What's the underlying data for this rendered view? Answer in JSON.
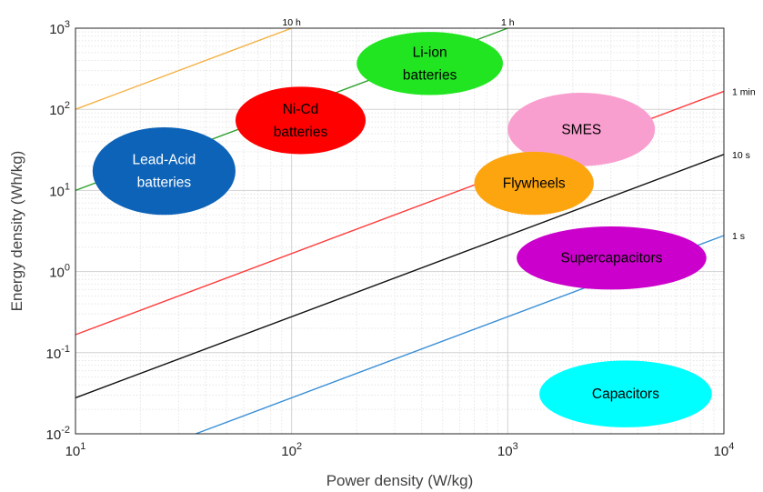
{
  "chart_data": {
    "type": "scatter",
    "title": "",
    "xlabel": "Power density (W/kg)",
    "ylabel": "Energy density (Wh/kg)",
    "xscale": "log",
    "yscale": "log",
    "xlim": [
      10,
      10000
    ],
    "ylim": [
      0.01,
      1000
    ],
    "grid": true,
    "x_ticks": [
      {
        "base": "10",
        "exp": "1",
        "value": 10
      },
      {
        "base": "10",
        "exp": "2",
        "value": 100
      },
      {
        "base": "10",
        "exp": "3",
        "value": 1000
      },
      {
        "base": "10",
        "exp": "4",
        "value": 10000
      }
    ],
    "y_ticks": [
      {
        "base": "10",
        "exp": "-2",
        "value": 0.01
      },
      {
        "base": "10",
        "exp": "-1",
        "value": 0.1
      },
      {
        "base": "10",
        "exp": "0",
        "value": 1
      },
      {
        "base": "10",
        "exp": "1",
        "value": 10
      },
      {
        "base": "10",
        "exp": "2",
        "value": 100
      },
      {
        "base": "10",
        "exp": "3",
        "value": 1000
      }
    ],
    "time_lines": [
      {
        "label": "10 h",
        "hours": 10,
        "color": "#f5b041"
      },
      {
        "label": "1 h",
        "hours": 1,
        "color": "#2ca02c"
      },
      {
        "label": "1 min",
        "hours": 0.016667,
        "color": "#ff3b3b"
      },
      {
        "label": "10 s",
        "hours": 0.0027778,
        "color": "#111111"
      },
      {
        "label": "1 s",
        "hours": 0.00027778,
        "color": "#3a8fd6"
      }
    ],
    "regions": [
      {
        "label_lines": [
          "Lead-Acid",
          "batteries"
        ],
        "x_range": [
          12,
          55
        ],
        "y_range": [
          5,
          60
        ],
        "color": "#0d63b8",
        "text_color": "#ffffff"
      },
      {
        "label_lines": [
          "Ni-Cd",
          "batteries"
        ],
        "x_range": [
          55,
          220
        ],
        "y_range": [
          28,
          190
        ],
        "color": "#ff0000",
        "text_color": "#000000"
      },
      {
        "label_lines": [
          "Li-ion",
          "batteries"
        ],
        "x_range": [
          200,
          950
        ],
        "y_range": [
          150,
          900
        ],
        "color": "#22e522",
        "text_color": "#000000"
      },
      {
        "label_lines": [
          "SMES"
        ],
        "x_range": [
          1000,
          4800
        ],
        "y_range": [
          20,
          160
        ],
        "color": "#f99fcf",
        "text_color": "#000000"
      },
      {
        "label_lines": [
          "Flywheels"
        ],
        "x_range": [
          700,
          2500
        ],
        "y_range": [
          5,
          30
        ],
        "color": "#fda50f",
        "text_color": "#000000"
      },
      {
        "label_lines": [
          "Supercapacitors"
        ],
        "x_range": [
          1100,
          8300
        ],
        "y_range": [
          0.6,
          3.6
        ],
        "color": "#cc00cc",
        "text_color": "#000000"
      },
      {
        "label_lines": [
          "Capacitors"
        ],
        "x_range": [
          1400,
          8800
        ],
        "y_range": [
          0.012,
          0.08
        ],
        "color": "#00ffff",
        "text_color": "#000000"
      }
    ]
  }
}
